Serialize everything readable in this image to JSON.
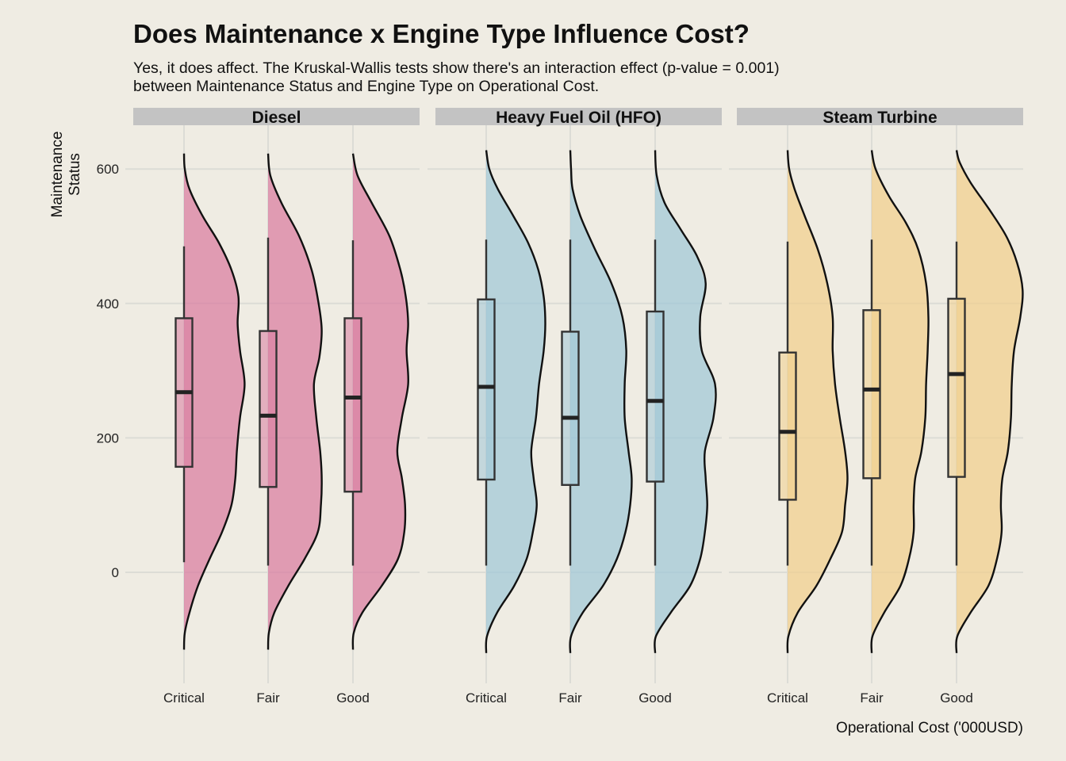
{
  "chart_data": {
    "type": "violin",
    "title": "Does Maintenance x Engine Type Influence Cost?",
    "subtitle": [
      "Yes, it does affect. The Kruskal-Wallis tests show there's an interaction effect (p-value = 0.001)",
      "between Maintenance Status and Engine Type on Operational Cost."
    ],
    "xlabel": "Operational Cost ('000USD)",
    "ylabel": "Maintenance Status",
    "ylim": [
      -140,
      660
    ],
    "yticks": [
      0,
      200,
      400,
      600
    ],
    "categories": [
      "Critical",
      "Fair",
      "Good"
    ],
    "grid": true,
    "facets": [
      {
        "name": "Diesel",
        "color": "#d97ba0",
        "groups": [
          {
            "category": "Critical",
            "min": 15,
            "q1": 157,
            "median": 268,
            "q3": 378,
            "max": 485,
            "density_range": [
              -115,
              623
            ],
            "density": [
              [
                -115,
                0
              ],
              [
                -90,
                0.01
              ],
              [
                -60,
                0.07
              ],
              [
                -20,
                0.18
              ],
              [
                20,
                0.33
              ],
              [
                60,
                0.49
              ],
              [
                100,
                0.61
              ],
              [
                140,
                0.66
              ],
              [
                180,
                0.68
              ],
              [
                230,
                0.72
              ],
              [
                280,
                0.78
              ],
              [
                330,
                0.72
              ],
              [
                370,
                0.69
              ],
              [
                410,
                0.7
              ],
              [
                450,
                0.61
              ],
              [
                490,
                0.45
              ],
              [
                530,
                0.24
              ],
              [
                570,
                0.07
              ],
              [
                600,
                0.01
              ],
              [
                623,
                0
              ]
            ]
          },
          {
            "category": "Fair",
            "min": 10,
            "q1": 127,
            "median": 233,
            "q3": 359,
            "max": 498,
            "density_range": [
              -115,
              623
            ],
            "density": [
              [
                -115,
                0
              ],
              [
                -90,
                0.01
              ],
              [
                -60,
                0.08
              ],
              [
                -20,
                0.26
              ],
              [
                20,
                0.47
              ],
              [
                60,
                0.64
              ],
              [
                100,
                0.68
              ],
              [
                140,
                0.69
              ],
              [
                180,
                0.67
              ],
              [
                230,
                0.62
              ],
              [
                280,
                0.59
              ],
              [
                320,
                0.66
              ],
              [
                360,
                0.69
              ],
              [
                400,
                0.65
              ],
              [
                450,
                0.56
              ],
              [
                500,
                0.4
              ],
              [
                550,
                0.17
              ],
              [
                590,
                0.03
              ],
              [
                623,
                0
              ]
            ]
          },
          {
            "category": "Good",
            "min": 10,
            "q1": 120,
            "median": 260,
            "q3": 378,
            "max": 494,
            "density_range": [
              -115,
              623
            ],
            "density": [
              [
                -115,
                0
              ],
              [
                -90,
                0.01
              ],
              [
                -60,
                0.12
              ],
              [
                -20,
                0.37
              ],
              [
                20,
                0.58
              ],
              [
                60,
                0.66
              ],
              [
                100,
                0.67
              ],
              [
                140,
                0.63
              ],
              [
                180,
                0.57
              ],
              [
                230,
                0.63
              ],
              [
                280,
                0.71
              ],
              [
                330,
                0.69
              ],
              [
                370,
                0.71
              ],
              [
                410,
                0.68
              ],
              [
                450,
                0.61
              ],
              [
                500,
                0.47
              ],
              [
                550,
                0.24
              ],
              [
                590,
                0.06
              ],
              [
                623,
                0
              ]
            ]
          }
        ]
      },
      {
        "name": "Heavy Fuel Oil (HFO)",
        "color": "#9fc7d7",
        "groups": [
          {
            "category": "Critical",
            "min": 10,
            "q1": 138,
            "median": 276,
            "q3": 406,
            "max": 495,
            "density_range": [
              -120,
              628
            ],
            "density": [
              [
                -120,
                0
              ],
              [
                -95,
                0.01
              ],
              [
                -60,
                0.14
              ],
              [
                -20,
                0.36
              ],
              [
                20,
                0.52
              ],
              [
                60,
                0.6
              ],
              [
                100,
                0.65
              ],
              [
                140,
                0.61
              ],
              [
                180,
                0.58
              ],
              [
                230,
                0.64
              ],
              [
                280,
                0.68
              ],
              [
                330,
                0.74
              ],
              [
                370,
                0.76
              ],
              [
                410,
                0.74
              ],
              [
                450,
                0.67
              ],
              [
                490,
                0.54
              ],
              [
                530,
                0.35
              ],
              [
                570,
                0.15
              ],
              [
                600,
                0.04
              ],
              [
                628,
                0
              ]
            ]
          },
          {
            "category": "Fair",
            "min": 10,
            "q1": 130,
            "median": 230,
            "q3": 358,
            "max": 495,
            "density_range": [
              -120,
              628
            ],
            "density": [
              [
                -120,
                0
              ],
              [
                -95,
                0.01
              ],
              [
                -60,
                0.16
              ],
              [
                -20,
                0.42
              ],
              [
                20,
                0.6
              ],
              [
                60,
                0.71
              ],
              [
                100,
                0.77
              ],
              [
                140,
                0.79
              ],
              [
                180,
                0.75
              ],
              [
                230,
                0.7
              ],
              [
                280,
                0.7
              ],
              [
                330,
                0.72
              ],
              [
                380,
                0.67
              ],
              [
                430,
                0.53
              ],
              [
                480,
                0.32
              ],
              [
                530,
                0.13
              ],
              [
                570,
                0.03
              ],
              [
                600,
                0.01
              ],
              [
                628,
                0
              ]
            ]
          },
          {
            "category": "Good",
            "min": 10,
            "q1": 135,
            "median": 255,
            "q3": 388,
            "max": 495,
            "density_range": [
              -120,
              628
            ],
            "density": [
              [
                -120,
                0
              ],
              [
                -95,
                0.01
              ],
              [
                -60,
                0.2
              ],
              [
                -20,
                0.45
              ],
              [
                20,
                0.58
              ],
              [
                60,
                0.64
              ],
              [
                100,
                0.67
              ],
              [
                140,
                0.65
              ],
              [
                180,
                0.64
              ],
              [
                230,
                0.75
              ],
              [
                280,
                0.77
              ],
              [
                330,
                0.6
              ],
              [
                380,
                0.58
              ],
              [
                430,
                0.65
              ],
              [
                470,
                0.54
              ],
              [
                510,
                0.33
              ],
              [
                550,
                0.12
              ],
              [
                590,
                0.02
              ],
              [
                628,
                0
              ]
            ]
          }
        ]
      },
      {
        "name": "Steam Turbine",
        "color": "#f1cf8c",
        "groups": [
          {
            "category": "Critical",
            "min": 10,
            "q1": 108,
            "median": 209,
            "q3": 327,
            "max": 492,
            "density_range": [
              -120,
              628
            ],
            "density": [
              [
                -120,
                0
              ],
              [
                -95,
                0.01
              ],
              [
                -60,
                0.13
              ],
              [
                -20,
                0.37
              ],
              [
                20,
                0.55
              ],
              [
                60,
                0.7
              ],
              [
                100,
                0.74
              ],
              [
                140,
                0.77
              ],
              [
                180,
                0.74
              ],
              [
                230,
                0.67
              ],
              [
                280,
                0.61
              ],
              [
                330,
                0.58
              ],
              [
                380,
                0.58
              ],
              [
                430,
                0.51
              ],
              [
                480,
                0.39
              ],
              [
                530,
                0.22
              ],
              [
                570,
                0.09
              ],
              [
                600,
                0.02
              ],
              [
                628,
                0
              ]
            ]
          },
          {
            "category": "Fair",
            "min": 10,
            "q1": 140,
            "median": 272,
            "q3": 390,
            "max": 495,
            "density_range": [
              -120,
              628
            ],
            "density": [
              [
                -120,
                0
              ],
              [
                -95,
                0.01
              ],
              [
                -60,
                0.16
              ],
              [
                -20,
                0.37
              ],
              [
                20,
                0.48
              ],
              [
                60,
                0.54
              ],
              [
                100,
                0.54
              ],
              [
                140,
                0.56
              ],
              [
                180,
                0.64
              ],
              [
                230,
                0.69
              ],
              [
                280,
                0.7
              ],
              [
                330,
                0.72
              ],
              [
                380,
                0.73
              ],
              [
                430,
                0.7
              ],
              [
                480,
                0.6
              ],
              [
                520,
                0.44
              ],
              [
                560,
                0.22
              ],
              [
                600,
                0.05
              ],
              [
                628,
                0
              ]
            ]
          },
          {
            "category": "Good",
            "min": 10,
            "q1": 142,
            "median": 295,
            "q3": 407,
            "max": 492,
            "density_range": [
              -120,
              628
            ],
            "density": [
              [
                -120,
                0
              ],
              [
                -95,
                0.01
              ],
              [
                -60,
                0.18
              ],
              [
                -20,
                0.41
              ],
              [
                20,
                0.52
              ],
              [
                60,
                0.58
              ],
              [
                100,
                0.57
              ],
              [
                140,
                0.59
              ],
              [
                180,
                0.66
              ],
              [
                230,
                0.7
              ],
              [
                280,
                0.71
              ],
              [
                330,
                0.74
              ],
              [
                380,
                0.82
              ],
              [
                420,
                0.85
              ],
              [
                460,
                0.78
              ],
              [
                500,
                0.64
              ],
              [
                540,
                0.42
              ],
              [
                580,
                0.18
              ],
              [
                610,
                0.04
              ],
              [
                628,
                0
              ]
            ]
          }
        ]
      }
    ]
  }
}
